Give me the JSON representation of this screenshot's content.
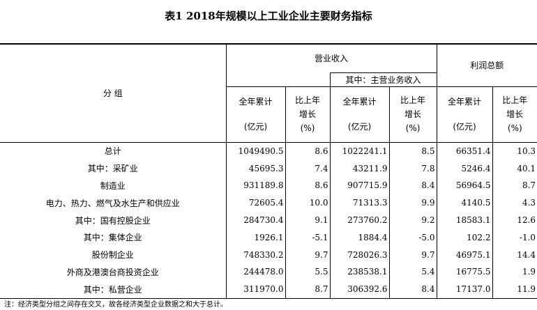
{
  "title": "表1  2018年规模以上工业企业主要财务指标",
  "header": {
    "group": "分  组",
    "revenue": "营业收入",
    "main_revenue": "其中：主营业务收入",
    "profit": "利润总额",
    "cumulative": "全年累计",
    "yoy_line1": "比上年",
    "yoy_line2": "增长",
    "unit_amount": "(亿元)",
    "unit_pct": "(%)"
  },
  "rows": [
    {
      "label": "总计",
      "c1": "1049490.5",
      "c2": "8.6",
      "c3": "1022241.1",
      "c4": "8.5",
      "c5": "66351.4",
      "c6": "10.3"
    },
    {
      "label": "其中：采矿业",
      "c1": "45695.3",
      "c2": "7.4",
      "c3": "43211.9",
      "c4": "7.8",
      "c5": "5246.4",
      "c6": "40.1"
    },
    {
      "label": "制造业",
      "c1": "931189.8",
      "c2": "8.6",
      "c3": "907715.9",
      "c4": "8.4",
      "c5": "56964.5",
      "c6": "8.7"
    },
    {
      "label": "电力、热力、燃气及水生产和供应业",
      "c1": "72605.4",
      "c2": "10.0",
      "c3": "71313.3",
      "c4": "9.9",
      "c5": "4140.5",
      "c6": "4.3"
    },
    {
      "label": "其中：国有控股企业",
      "c1": "284730.4",
      "c2": "9.1",
      "c3": "273760.2",
      "c4": "9.2",
      "c5": "18583.1",
      "c6": "12.6"
    },
    {
      "label": "其中：集体企业",
      "c1": "1926.1",
      "c2": "-5.1",
      "c3": "1884.4",
      "c4": "-5.0",
      "c5": "102.2",
      "c6": "-1.0"
    },
    {
      "label": "股份制企业",
      "c1": "748330.2",
      "c2": "9.7",
      "c3": "728026.3",
      "c4": "9.7",
      "c5": "46975.1",
      "c6": "14.4"
    },
    {
      "label": "外商及港澳台商投资企业",
      "c1": "244478.0",
      "c2": "5.5",
      "c3": "238538.1",
      "c4": "5.4",
      "c5": "16775.5",
      "c6": "1.9"
    },
    {
      "label": "其中：私营企业",
      "c1": "311970.0",
      "c2": "8.7",
      "c3": "306392.6",
      "c4": "8.4",
      "c5": "17137.0",
      "c6": "11.9"
    }
  ],
  "note": "注：经济类型分组之间存在交叉，故各经济类型企业数据之和大于总计。"
}
